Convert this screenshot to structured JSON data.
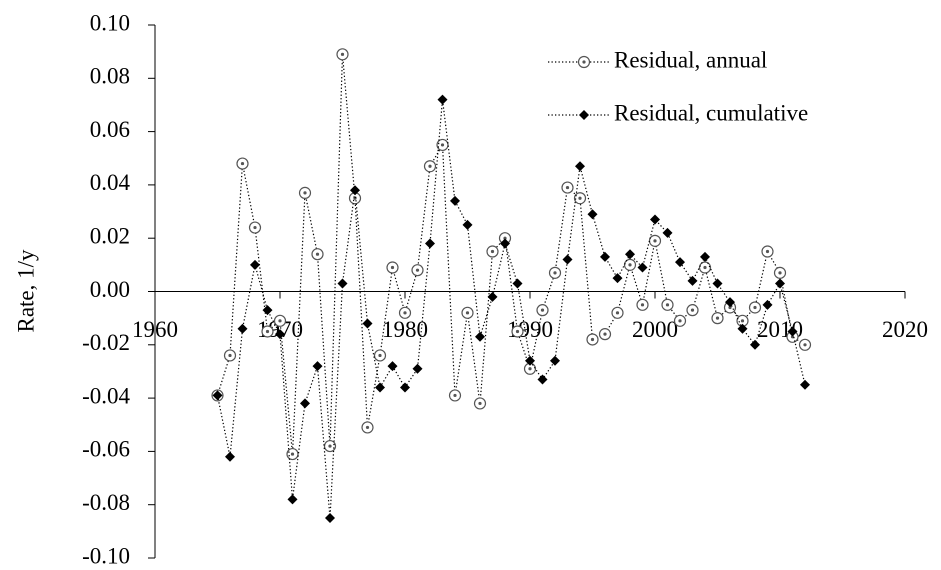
{
  "chart_data": {
    "type": "scatter",
    "y_label": "Rate, 1/y",
    "x": [
      1965,
      1966,
      1967,
      1968,
      1969,
      1970,
      1971,
      1972,
      1973,
      1974,
      1975,
      1976,
      1977,
      1978,
      1979,
      1980,
      1981,
      1982,
      1983,
      1984,
      1985,
      1986,
      1987,
      1988,
      1989,
      1990,
      1991,
      1992,
      1993,
      1994,
      1995,
      1996,
      1997,
      1998,
      1999,
      2000,
      2001,
      2002,
      2003,
      2004,
      2005,
      2006,
      2007,
      2008,
      2009,
      2010,
      2011,
      2012
    ],
    "series": [
      {
        "name": "Residual, annual",
        "color": "#000000",
        "marker": "circle-dot",
        "values": [
          -0.039,
          -0.024,
          0.048,
          0.024,
          -0.015,
          -0.011,
          -0.061,
          0.037,
          0.014,
          -0.058,
          0.089,
          0.035,
          -0.051,
          -0.024,
          0.009,
          -0.008,
          0.008,
          0.047,
          0.055,
          -0.039,
          -0.008,
          -0.042,
          0.015,
          0.02,
          -0.015,
          -0.029,
          -0.007,
          0.007,
          0.039,
          0.035,
          -0.018,
          -0.016,
          -0.008,
          0.01,
          -0.005,
          0.019,
          -0.005,
          -0.011,
          -0.007,
          0.009,
          -0.01,
          -0.006,
          -0.011,
          -0.006,
          0.015,
          0.007,
          -0.017,
          -0.02
        ]
      },
      {
        "name": "Residual, cumulative",
        "color": "#000000",
        "marker": "diamond",
        "values": [
          -0.039,
          -0.062,
          -0.014,
          0.01,
          -0.007,
          -0.016,
          -0.078,
          -0.042,
          -0.028,
          -0.085,
          0.003,
          0.038,
          -0.012,
          -0.036,
          -0.028,
          -0.036,
          -0.029,
          0.018,
          0.072,
          0.034,
          0.025,
          -0.017,
          -0.002,
          0.018,
          0.003,
          -0.026,
          -0.033,
          -0.026,
          0.012,
          0.047,
          0.029,
          0.013,
          0.005,
          0.014,
          0.009,
          0.027,
          0.022,
          0.011,
          0.004,
          0.013,
          0.003,
          -0.004,
          -0.014,
          -0.02,
          -0.005,
          0.003,
          -0.015,
          -0.035
        ]
      }
    ],
    "xlim": [
      1960,
      2020
    ],
    "xticks": [
      1960,
      1970,
      1980,
      1990,
      2000,
      2010,
      2020
    ],
    "ylim": [
      -0.1,
      0.1
    ],
    "yticks": [
      {
        "value": -0.1,
        "label": "-0.10"
      },
      {
        "value": -0.08,
        "label": "-0.08"
      },
      {
        "value": -0.06,
        "label": "-0.06"
      },
      {
        "value": -0.04,
        "label": "-0.04"
      },
      {
        "value": -0.02,
        "label": "-0.02"
      },
      {
        "value": 0,
        "label": "0.00"
      },
      {
        "value": 0.02,
        "label": "0.02"
      },
      {
        "value": 0.04,
        "label": "0.04"
      },
      {
        "value": 0.06,
        "label": "0.06"
      },
      {
        "value": 0.08,
        "label": "0.08"
      },
      {
        "value": 0.1,
        "label": "0.10"
      }
    ],
    "grid": false,
    "legend": "top-right"
  }
}
